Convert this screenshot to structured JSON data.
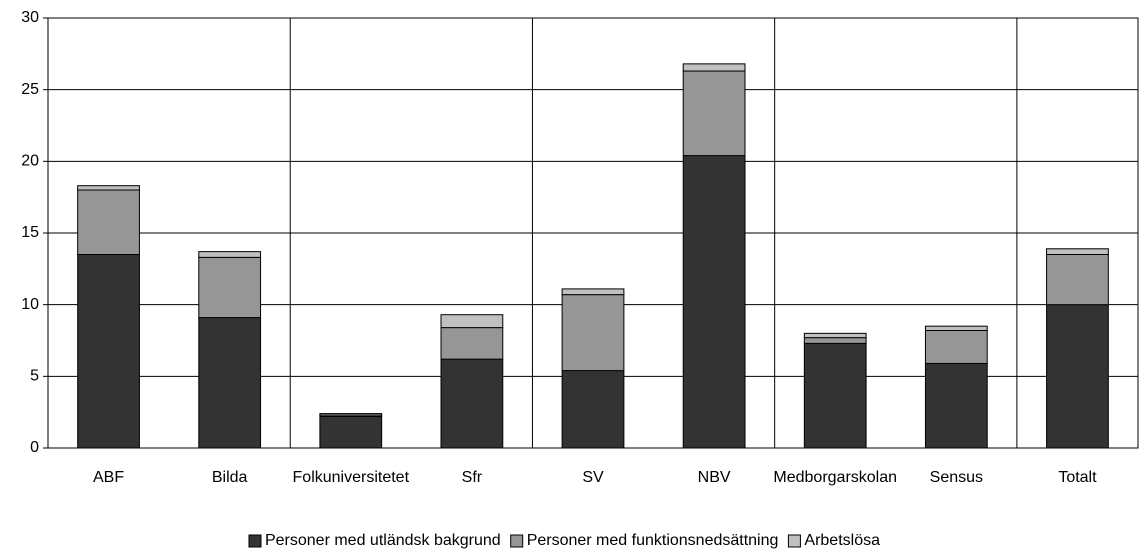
{
  "chart_data": {
    "type": "stacked_bar",
    "categories": [
      "ABF",
      "Bilda",
      "Folkuniversitetet",
      "Sfr",
      "SV",
      "NBV",
      "Medborgarskolan",
      "Sensus",
      "Totalt"
    ],
    "series": [
      {
        "name": "Personer med utländsk bakgrund",
        "color": "#333333",
        "values": [
          13.5,
          9.1,
          2.2,
          6.2,
          5.4,
          20.4,
          7.3,
          5.9,
          10.0
        ]
      },
      {
        "name": "Personer med funktionsnedsättning",
        "color": "#969696",
        "values": [
          4.5,
          4.2,
          0.1,
          2.2,
          5.3,
          5.9,
          0.4,
          2.3,
          3.5
        ]
      },
      {
        "name": "Arbetslösa",
        "color": "#c0c0c0",
        "values": [
          0.3,
          0.4,
          0.1,
          0.9,
          0.4,
          0.5,
          0.3,
          0.3,
          0.4
        ]
      }
    ],
    "ylim": [
      0,
      30
    ],
    "yticks": [
      0,
      5,
      10,
      15,
      20,
      25,
      30
    ],
    "grid": true,
    "legend": "bottom"
  }
}
